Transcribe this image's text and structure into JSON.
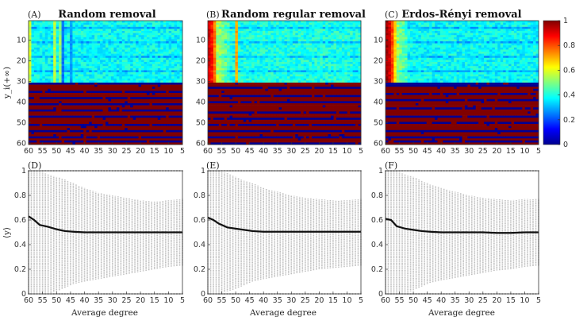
{
  "chart_data": [
    {
      "type": "heatmap",
      "panel": "(A)",
      "title": "Random removal",
      "ylabel": "y_i(+∞)",
      "xlim": [
        60,
        5
      ],
      "ylim": [
        1,
        60
      ],
      "xticks": [
        "60",
        "55",
        "50",
        "45",
        "40",
        "35",
        "30",
        "25",
        "20",
        "15",
        "10",
        "5"
      ],
      "yticks": [
        "10",
        "20",
        "30",
        "40",
        "50",
        "60"
      ],
      "upper_rows_mean": 0.38,
      "bright_columns": [
        {
          "x": 60,
          "v": 0.62
        },
        {
          "x": 51,
          "v": 0.6
        },
        {
          "x": 49,
          "v": 0.55
        }
      ],
      "dark_columns": [
        {
          "x": 48,
          "v": 0.22
        },
        {
          "x": 45,
          "v": 0.25
        }
      ],
      "lower_rows_blue": [
        31,
        35,
        38,
        41,
        44,
        47,
        51,
        54,
        57,
        59
      ]
    },
    {
      "type": "heatmap",
      "panel": "(B)",
      "title": "Random regular removal",
      "xlim": [
        60,
        5
      ],
      "ylim": [
        1,
        60
      ],
      "xticks": [
        "60",
        "55",
        "50",
        "45",
        "40",
        "35",
        "30",
        "25",
        "20",
        "15",
        "10",
        "5"
      ],
      "yticks": [
        "10",
        "20",
        "30",
        "40",
        "50",
        "60"
      ],
      "upper_rows_mean": 0.4,
      "hot_columns": [
        {
          "x": 60,
          "v": 0.95
        },
        {
          "x": 59,
          "v": 0.9
        },
        {
          "x": 58,
          "v": 0.8
        },
        {
          "x": 50,
          "v": 0.75
        }
      ],
      "lower_rows_blue": [
        33,
        37,
        40,
        45,
        48,
        51,
        54,
        57,
        60
      ]
    },
    {
      "type": "heatmap",
      "panel": "(C)",
      "title": "Erdos-Rényi removal",
      "xlim": [
        60,
        5
      ],
      "ylim": [
        1,
        60
      ],
      "xticks": [
        "60",
        "55",
        "50",
        "45",
        "40",
        "35",
        "30",
        "25",
        "20",
        "15",
        "10",
        "5"
      ],
      "yticks": [
        "10",
        "20",
        "30",
        "40",
        "50",
        "60"
      ],
      "upper_rows_mean": 0.38,
      "hot_columns": [
        {
          "x": 60,
          "v": 1.0
        },
        {
          "x": 59,
          "v": 0.95
        },
        {
          "x": 58,
          "v": 0.85
        },
        {
          "x": 57,
          "v": 0.7
        }
      ],
      "lower_rows_blue": [
        31,
        32,
        36,
        39,
        43,
        47,
        50,
        54,
        57,
        59
      ],
      "colorbar": {
        "min": 0,
        "max": 1,
        "ticks": [
          "0",
          "0.2",
          "0.4",
          "0.6",
          "0.8",
          "1"
        ],
        "colormap": "jet"
      }
    },
    {
      "type": "scatter",
      "panel": "(D)",
      "xlabel": "Average degree",
      "ylabel": "⟨y⟩",
      "xlim": [
        60,
        5
      ],
      "ylim": [
        0,
        1
      ],
      "xticks": [
        "60",
        "55",
        "50",
        "45",
        "40",
        "35",
        "30",
        "25",
        "20",
        "15",
        "10",
        "5"
      ],
      "yticks": [
        "0",
        "0.2",
        "0.4",
        "0.6",
        "0.8",
        "1"
      ],
      "mean_line": {
        "x": [
          60,
          58,
          56,
          53,
          50,
          47,
          44,
          40,
          35,
          30,
          25,
          20,
          15,
          10,
          5
        ],
        "y": [
          0.63,
          0.6,
          0.56,
          0.545,
          0.525,
          0.51,
          0.505,
          0.5,
          0.5,
          0.5,
          0.5,
          0.5,
          0.5,
          0.5,
          0.5
        ]
      },
      "spread": {
        "lo": [
          0.0,
          0.0,
          0.0,
          0.0,
          0.02,
          0.05,
          0.08,
          0.1,
          0.12,
          0.14,
          0.16,
          0.18,
          0.2,
          0.22,
          0.23
        ],
        "hi": [
          1.0,
          1.0,
          1.0,
          0.97,
          0.95,
          0.93,
          0.9,
          0.86,
          0.82,
          0.8,
          0.78,
          0.76,
          0.75,
          0.76,
          0.77
        ]
      }
    },
    {
      "type": "scatter",
      "panel": "(E)",
      "xlabel": "Average degree",
      "xlim": [
        60,
        5
      ],
      "ylim": [
        0,
        1
      ],
      "xticks": [
        "60",
        "55",
        "50",
        "45",
        "40",
        "35",
        "30",
        "25",
        "20",
        "15",
        "10",
        "5"
      ],
      "yticks": [
        "0",
        "0.2",
        "0.4",
        "0.6",
        "0.8",
        "1"
      ],
      "mean_line": {
        "x": [
          60,
          58,
          56,
          53,
          50,
          47,
          44,
          40,
          35,
          30,
          25,
          20,
          15,
          10,
          5
        ],
        "y": [
          0.62,
          0.6,
          0.57,
          0.54,
          0.53,
          0.52,
          0.51,
          0.505,
          0.505,
          0.505,
          0.505,
          0.505,
          0.505,
          0.505,
          0.505
        ]
      },
      "spread": {
        "lo": [
          0.0,
          0.0,
          0.0,
          0.02,
          0.04,
          0.07,
          0.1,
          0.12,
          0.14,
          0.16,
          0.18,
          0.2,
          0.21,
          0.22,
          0.23
        ],
        "hi": [
          1.0,
          1.0,
          1.0,
          0.98,
          0.95,
          0.92,
          0.9,
          0.86,
          0.83,
          0.8,
          0.78,
          0.77,
          0.76,
          0.76,
          0.77
        ]
      }
    },
    {
      "type": "scatter",
      "panel": "(F)",
      "xlabel": "Average degree",
      "xlim": [
        60,
        5
      ],
      "ylim": [
        0,
        1
      ],
      "xticks": [
        "60",
        "55",
        "50",
        "45",
        "40",
        "35",
        "30",
        "25",
        "20",
        "15",
        "10",
        "5"
      ],
      "yticks": [
        "0",
        "0.2",
        "0.4",
        "0.6",
        "0.8",
        "1"
      ],
      "mean_line": {
        "x": [
          60,
          58,
          56,
          53,
          50,
          47,
          44,
          40,
          35,
          30,
          25,
          20,
          15,
          10,
          5
        ],
        "y": [
          0.61,
          0.6,
          0.55,
          0.53,
          0.52,
          0.51,
          0.505,
          0.5,
          0.5,
          0.5,
          0.5,
          0.495,
          0.495,
          0.5,
          0.5
        ]
      },
      "spread": {
        "lo": [
          0.0,
          0.0,
          0.0,
          0.0,
          0.03,
          0.06,
          0.09,
          0.11,
          0.13,
          0.15,
          0.17,
          0.19,
          0.2,
          0.22,
          0.23
        ],
        "hi": [
          1.0,
          1.0,
          1.0,
          0.97,
          0.95,
          0.92,
          0.89,
          0.86,
          0.83,
          0.8,
          0.78,
          0.77,
          0.76,
          0.77,
          0.77
        ]
      }
    }
  ],
  "colors": {
    "grey_points": "#bdbdbd",
    "mean_line": "#111111",
    "dark_red": "#800000",
    "deep_blue": "#0000a0"
  }
}
